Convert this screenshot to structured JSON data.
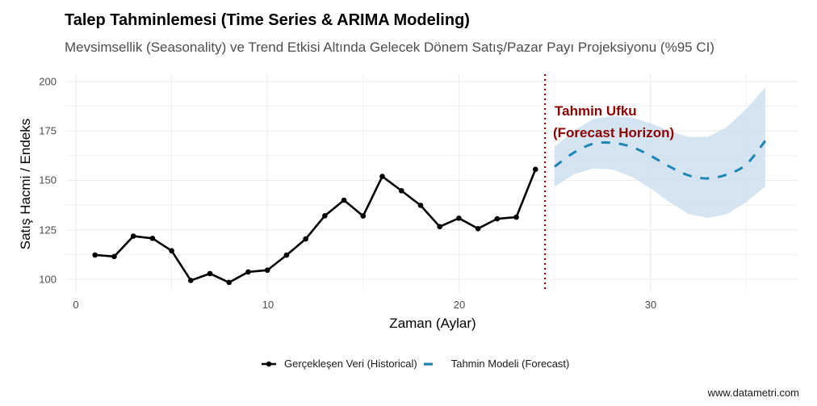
{
  "title": "Talep Tahminlemesi (Time Series & ARIMA Modeling)",
  "subtitle": "Mevsimsellik (Seasonality) ve Trend Etkisi Altında Gelecek Dönem Satış/Pazar Payı Projeksiyonu (%95 CI)",
  "axes": {
    "xlabel": "Zaman (Aylar)",
    "ylabel": "Satış Hacmi / Endeks",
    "xticks": [
      "0",
      "10",
      "20",
      "30"
    ],
    "yticks": [
      "100",
      "125",
      "150",
      "175",
      "200"
    ]
  },
  "annotation": {
    "line1": "Tahmin Ufku",
    "line2": "(Forecast Horizon)",
    "color": "#8B0000"
  },
  "legend": {
    "historical": "Gerçekleşen Veri (Historical)",
    "forecast": "Tahmin Modeli (Forecast)"
  },
  "footer": "www.datametri.com",
  "colors": {
    "historical": "#000000",
    "forecast": "#1F84B4",
    "ci_band": "#C6DCEC",
    "horizon_line": "#8B0000",
    "grid": "#EBEBEB"
  },
  "chart_data": {
    "type": "line",
    "title": "Talep Tahminlemesi (Time Series & ARIMA Modeling)",
    "subtitle": "Mevsimsellik (Seasonality) ve Trend Etkisi Altında Gelecek Dönem Satış/Pazar Payı Projeksiyonu (%95 CI)",
    "xlabel": "Zaman (Aylar)",
    "ylabel": "Satış Hacmi / Endeks",
    "xlim": [
      -0.5,
      37.5
    ],
    "ylim": [
      94,
      202
    ],
    "xticks": [
      0,
      10,
      20,
      30
    ],
    "yticks": [
      100,
      125,
      150,
      175,
      200
    ],
    "grid": true,
    "legend_position": "bottom",
    "vline": {
      "x": 24.5,
      "style": "dotted",
      "color": "#8B0000",
      "label": "Tahmin Ufku (Forecast Horizon)"
    },
    "series": [
      {
        "name": "Gerçekleşen Veri (Historical)",
        "style": "solid line with points",
        "x": [
          1,
          2,
          3,
          4,
          5,
          6,
          7,
          8,
          9,
          10,
          11,
          12,
          13,
          14,
          15,
          16,
          17,
          18,
          19,
          20,
          21,
          22,
          23,
          24
        ],
        "values": [
          112.3,
          111.5,
          121.8,
          120.7,
          114.4,
          99.4,
          102.9,
          98.4,
          103.7,
          104.6,
          112.2,
          120.4,
          132.1,
          140.0,
          132.0,
          152.0,
          144.8,
          137.4,
          126.6,
          130.9,
          125.6,
          130.6,
          131.4,
          155.6
        ]
      },
      {
        "name": "Tahmin Modeli (Forecast)",
        "style": "dashed line",
        "x": [
          25,
          26,
          27,
          28,
          29,
          30,
          31,
          32,
          33,
          34,
          35,
          36
        ],
        "values": [
          157,
          164,
          168.5,
          169,
          167,
          162.5,
          157,
          152.5,
          151,
          153,
          158,
          170
        ],
        "lower": [
          147,
          153,
          156,
          155.5,
          152,
          146,
          139,
          133,
          131,
          133,
          139,
          147
        ],
        "upper": [
          167,
          175,
          181,
          182.5,
          182,
          179,
          175,
          172,
          172,
          177,
          186,
          197
        ]
      }
    ]
  }
}
